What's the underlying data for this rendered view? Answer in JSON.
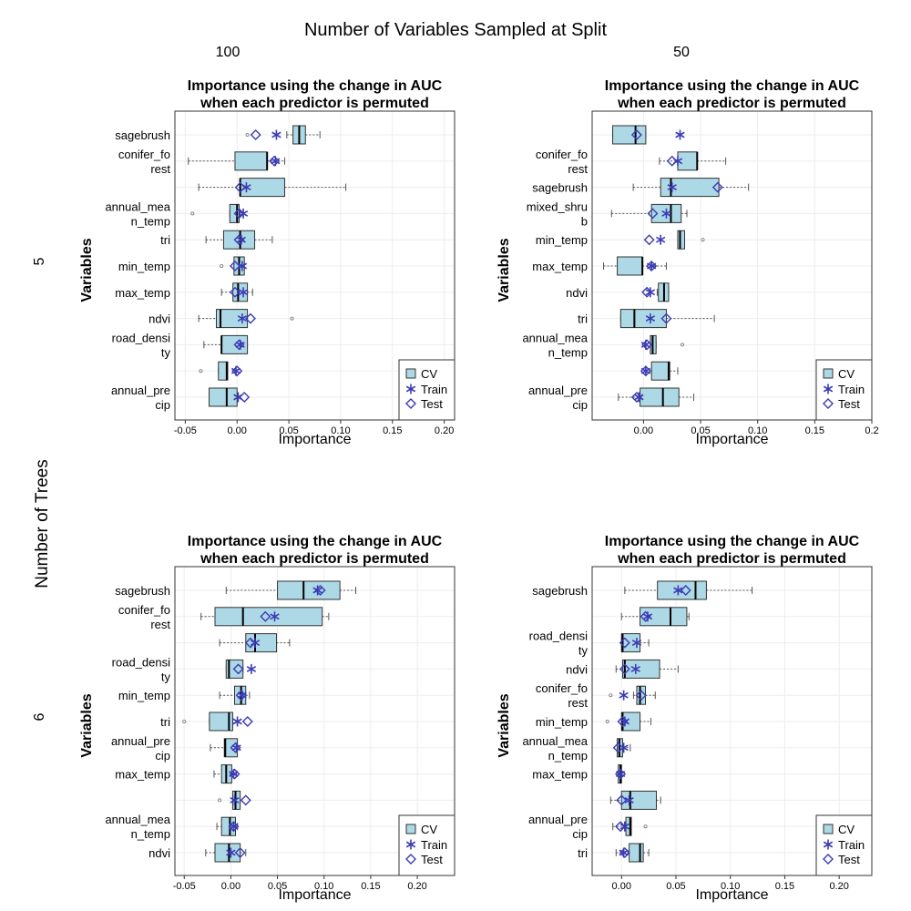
{
  "figure": {
    "title": "Number of Variables Sampled at Split",
    "col_labels": [
      "100",
      "50"
    ],
    "row_axis_label": "Number of Trees",
    "row_labels": [
      "5",
      "6"
    ]
  },
  "legend": {
    "items": [
      "CV",
      "Train",
      "Test"
    ],
    "colors": {
      "cv_fill": "#add8e6",
      "marker": "#3b3bb5"
    }
  },
  "chart_data": [
    {
      "type": "boxplot",
      "title": "Importance using the change in AUC\nwhen each predictor is permuted",
      "xlabel": "Importance",
      "ylabel": "Variables",
      "xlim": [
        -0.06,
        0.21
      ],
      "xticks": [
        -0.05,
        0.0,
        0.05,
        0.1,
        0.15,
        0.2
      ],
      "xtick_labels": [
        "-0.05",
        "0.00",
        "0.05",
        "0.10",
        "0.15",
        "0.20"
      ],
      "grid": true,
      "legend_position": "bottom-right",
      "variables": [
        {
          "label": "sagebrush",
          "whisker": [
            0.048,
            0.08
          ],
          "box": [
            0.054,
            0.066
          ],
          "median": 0.06,
          "outliers": [
            0.01
          ],
          "train": 0.038,
          "test": 0.018
        },
        {
          "label": "conifer_fo\nrest",
          "whisker": [
            -0.047,
            0.046
          ],
          "box": [
            -0.002,
            0.029
          ],
          "median": 0.029,
          "outliers": [],
          "train": 0.037,
          "test": 0.036
        },
        {
          "label": "",
          "whisker": [
            -0.037,
            0.105
          ],
          "box": [
            0.003,
            0.046
          ],
          "median": 0.003,
          "outliers": [],
          "train": 0.009,
          "test": 0.003
        },
        {
          "label": "annual_mea\nn_temp",
          "whisker": [
            -0.007,
            0.003
          ],
          "box": [
            -0.007,
            0.002
          ],
          "median": 0.0,
          "outliers": [
            -0.043
          ],
          "train": 0.006,
          "test": 0.002
        },
        {
          "label": "tri",
          "whisker": [
            -0.03,
            0.034
          ],
          "box": [
            -0.013,
            0.017
          ],
          "median": 0.003,
          "outliers": [],
          "train": 0.004,
          "test": 0.002
        },
        {
          "label": "min_temp",
          "whisker": [
            -0.003,
            0.007
          ],
          "box": [
            -0.003,
            0.007
          ],
          "median": 0.002,
          "outliers": [
            -0.015
          ],
          "train": 0.005,
          "test": -0.002
        },
        {
          "label": "max_temp",
          "whisker": [
            -0.015,
            0.015
          ],
          "box": [
            -0.004,
            0.01
          ],
          "median": 0.001,
          "outliers": [],
          "train": 0.006,
          "test": -0.002
        },
        {
          "label": "ndvi",
          "whisker": [
            -0.037,
            0.01
          ],
          "box": [
            -0.02,
            0.01
          ],
          "median": -0.016,
          "outliers": [
            0.053
          ],
          "train": 0.005,
          "test": 0.013
        },
        {
          "label": "road_densi\nty",
          "whisker": [
            -0.032,
            0.01
          ],
          "box": [
            -0.015,
            0.01
          ],
          "median": -0.015,
          "outliers": [],
          "train": 0.003,
          "test": 0.002
        },
        {
          "label": "",
          "whisker": [
            -0.018,
            -0.009
          ],
          "box": [
            -0.018,
            -0.009
          ],
          "median": -0.01,
          "outliers": [
            -0.035
          ],
          "train": -0.001,
          "test": 0.0
        },
        {
          "label": "annual_pre\ncip",
          "whisker": [
            -0.027,
            0.0
          ],
          "box": [
            -0.027,
            0.0
          ],
          "median": -0.01,
          "outliers": [],
          "train": 0.001,
          "test": 0.007
        }
      ]
    },
    {
      "type": "boxplot",
      "title": "Importance using the change in AUC\nwhen each predictor is permuted",
      "xlabel": "Importance",
      "ylabel": "Variables",
      "xlim": [
        -0.045,
        0.2
      ],
      "xticks": [
        0.0,
        0.05,
        0.1,
        0.15,
        0.2
      ],
      "xtick_labels": [
        "0.00",
        "0.05",
        "0.10",
        "0.15",
        "0.2"
      ],
      "grid": true,
      "legend_position": "bottom-right",
      "variables": [
        {
          "label": "",
          "whisker": [
            -0.027,
            0.002
          ],
          "box": [
            -0.027,
            0.002
          ],
          "median": -0.007,
          "outliers": [],
          "train": 0.032,
          "test": -0.006
        },
        {
          "label": "conifer_fo\nrest",
          "whisker": [
            0.014,
            0.072
          ],
          "box": [
            0.03,
            0.047
          ],
          "median": 0.047,
          "outliers": [],
          "train": 0.03,
          "test": 0.025
        },
        {
          "label": "sagebrush",
          "whisker": [
            -0.009,
            0.092
          ],
          "box": [
            0.015,
            0.066
          ],
          "median": 0.024,
          "outliers": [],
          "train": 0.025,
          "test": 0.065
        },
        {
          "label": "mixed_shru\nb",
          "whisker": [
            -0.028,
            0.038
          ],
          "box": [
            0.007,
            0.033
          ],
          "median": 0.024,
          "outliers": [],
          "train": 0.02,
          "test": 0.008
        },
        {
          "label": "min_temp",
          "whisker": [
            0.03,
            0.036
          ],
          "box": [
            0.03,
            0.036
          ],
          "median": 0.032,
          "outliers": [
            0.052
          ],
          "train": 0.015,
          "test": 0.005
        },
        {
          "label": "max_temp",
          "whisker": [
            -0.035,
            0.02
          ],
          "box": [
            -0.023,
            -0.001
          ],
          "median": -0.001,
          "outliers": [],
          "train": 0.007,
          "test": 0.007
        },
        {
          "label": "ndvi",
          "whisker": [
            0.012,
            0.022
          ],
          "box": [
            0.013,
            0.022
          ],
          "median": 0.018,
          "outliers": [],
          "train": 0.006,
          "test": 0.003
        },
        {
          "label": "tri",
          "whisker": [
            -0.02,
            0.062
          ],
          "box": [
            -0.02,
            0.02
          ],
          "median": -0.008,
          "outliers": [],
          "train": 0.006,
          "test": 0.02
        },
        {
          "label": "annual_mea\nn_temp",
          "whisker": [
            0.006,
            0.011
          ],
          "box": [
            0.006,
            0.011
          ],
          "median": 0.008,
          "outliers": [
            0.034
          ],
          "train": 0.002,
          "test": 0.003
        },
        {
          "label": "",
          "whisker": [
            0.007,
            0.03
          ],
          "box": [
            0.007,
            0.023
          ],
          "median": 0.022,
          "outliers": [],
          "train": 0.002,
          "test": 0.002
        },
        {
          "label": "annual_pre\ncip",
          "whisker": [
            -0.022,
            0.044
          ],
          "box": [
            -0.003,
            0.031
          ],
          "median": 0.017,
          "outliers": [],
          "train": -0.004,
          "test": -0.006
        }
      ]
    },
    {
      "type": "boxplot",
      "title": "Importance using the change in AUC\nwhen each predictor is permuted",
      "xlabel": "Importance",
      "ylabel": "Variables",
      "xlim": [
        -0.06,
        0.24
      ],
      "xticks": [
        -0.05,
        0.0,
        0.05,
        0.1,
        0.15,
        0.2
      ],
      "xtick_labels": [
        "-0.05",
        "0.00",
        "0.05",
        "0.10",
        "0.15",
        "0.20"
      ],
      "grid": true,
      "legend_position": "bottom-right",
      "variables": [
        {
          "label": "sagebrush",
          "whisker": [
            -0.005,
            0.134
          ],
          "box": [
            0.05,
            0.117
          ],
          "median": 0.078,
          "outliers": [],
          "train": 0.093,
          "test": 0.096
        },
        {
          "label": "conifer_fo\nrest",
          "whisker": [
            -0.032,
            0.105
          ],
          "box": [
            -0.017,
            0.098
          ],
          "median": 0.013,
          "outliers": [],
          "train": 0.047,
          "test": 0.037
        },
        {
          "label": "",
          "whisker": [
            -0.012,
            0.063
          ],
          "box": [
            0.016,
            0.049
          ],
          "median": 0.026,
          "outliers": [],
          "train": 0.026,
          "test": 0.021
        },
        {
          "label": "road_densi\nty",
          "whisker": [
            -0.005,
            0.013
          ],
          "box": [
            -0.005,
            0.013
          ],
          "median": -0.002,
          "outliers": [],
          "train": 0.022,
          "test": 0.008
        },
        {
          "label": "min_temp",
          "whisker": [
            -0.012,
            0.02
          ],
          "box": [
            0.004,
            0.016
          ],
          "median": 0.011,
          "outliers": [],
          "train": 0.012,
          "test": 0.011
        },
        {
          "label": "tri",
          "whisker": [
            -0.023,
            0.002
          ],
          "box": [
            -0.023,
            0.002
          ],
          "median": -0.002,
          "outliers": [
            -0.05
          ],
          "train": 0.007,
          "test": 0.018
        },
        {
          "label": "annual_pre\ncip",
          "whisker": [
            -0.022,
            0.007
          ],
          "box": [
            -0.007,
            0.007
          ],
          "median": -0.006,
          "outliers": [],
          "train": 0.006,
          "test": 0.005
        },
        {
          "label": "max_temp",
          "whisker": [
            -0.018,
            0.006
          ],
          "box": [
            -0.01,
            0.001
          ],
          "median": -0.005,
          "outliers": [],
          "train": 0.003,
          "test": 0.004
        },
        {
          "label": "",
          "whisker": [
            0.002,
            0.01
          ],
          "box": [
            0.002,
            0.01
          ],
          "median": 0.005,
          "outliers": [
            -0.012
          ],
          "train": 0.004,
          "test": 0.016
        },
        {
          "label": "annual_mea\nn_temp",
          "whisker": [
            -0.015,
            0.007
          ],
          "box": [
            -0.01,
            0.005
          ],
          "median": -0.001,
          "outliers": [],
          "train": 0.003,
          "test": 0.003
        },
        {
          "label": "ndvi",
          "whisker": [
            -0.027,
            0.016
          ],
          "box": [
            -0.017,
            0.01
          ],
          "median": -0.002,
          "outliers": [],
          "train": 0.0,
          "test": 0.01
        }
      ]
    },
    {
      "type": "boxplot",
      "title": "Importance using the change in AUC\nwhen each predictor is permuted",
      "xlabel": "Importance",
      "ylabel": "Variables",
      "xlim": [
        -0.027,
        0.23
      ],
      "xticks": [
        0.0,
        0.05,
        0.1,
        0.15,
        0.2
      ],
      "xtick_labels": [
        "0.00",
        "0.05",
        "0.10",
        "0.15",
        "0.20"
      ],
      "grid": true,
      "legend_position": "bottom-right",
      "variables": [
        {
          "label": "sagebrush",
          "whisker": [
            0.003,
            0.12
          ],
          "box": [
            0.033,
            0.078
          ],
          "median": 0.068,
          "outliers": [],
          "train": 0.052,
          "test": 0.059
        },
        {
          "label": "",
          "whisker": [
            0.0,
            0.062
          ],
          "box": [
            0.017,
            0.06
          ],
          "median": 0.045,
          "outliers": [],
          "train": 0.024,
          "test": 0.022
        },
        {
          "label": "road_densi\nty",
          "whisker": [
            0.0,
            0.025
          ],
          "box": [
            0.0,
            0.017
          ],
          "median": 0.001,
          "outliers": [],
          "train": 0.014,
          "test": 0.003
        },
        {
          "label": "ndvi",
          "whisker": [
            -0.005,
            0.052
          ],
          "box": [
            0.001,
            0.035
          ],
          "median": 0.003,
          "outliers": [],
          "train": 0.013,
          "test": 0.003
        },
        {
          "label": "conifer_fo\nrest",
          "whisker": [
            0.011,
            0.031
          ],
          "box": [
            0.014,
            0.022
          ],
          "median": 0.017,
          "outliers": [
            -0.01
          ],
          "train": 0.002,
          "test": 0.018
        },
        {
          "label": "min_temp",
          "whisker": [
            0.0,
            0.027
          ],
          "box": [
            0.0,
            0.017
          ],
          "median": 0.001,
          "outliers": [
            -0.013
          ],
          "train": 0.003,
          "test": 0.001
        },
        {
          "label": "annual_mea\nn_temp",
          "whisker": [
            -0.004,
            0.008
          ],
          "box": [
            -0.004,
            0.001
          ],
          "median": -0.002,
          "outliers": [],
          "train": 0.002,
          "test": -0.003
        },
        {
          "label": "max_temp",
          "whisker": [
            -0.003,
            -0.001
          ],
          "box": [
            -0.003,
            0.0
          ],
          "median": -0.001,
          "outliers": [],
          "train": -0.001,
          "test": -0.001
        },
        {
          "label": "",
          "whisker": [
            -0.01,
            0.036
          ],
          "box": [
            0.0,
            0.032
          ],
          "median": 0.008,
          "outliers": [],
          "train": 0.007,
          "test": 0.0
        },
        {
          "label": "annual_pre\ncip",
          "whisker": [
            -0.008,
            0.009
          ],
          "box": [
            0.004,
            0.009
          ],
          "median": 0.008,
          "outliers": [
            0.022
          ],
          "train": 0.003,
          "test": -0.001
        },
        {
          "label": "tri",
          "whisker": [
            -0.005,
            0.025
          ],
          "box": [
            0.007,
            0.02
          ],
          "median": 0.017,
          "outliers": [],
          "train": 0.002,
          "test": 0.003
        }
      ]
    }
  ]
}
